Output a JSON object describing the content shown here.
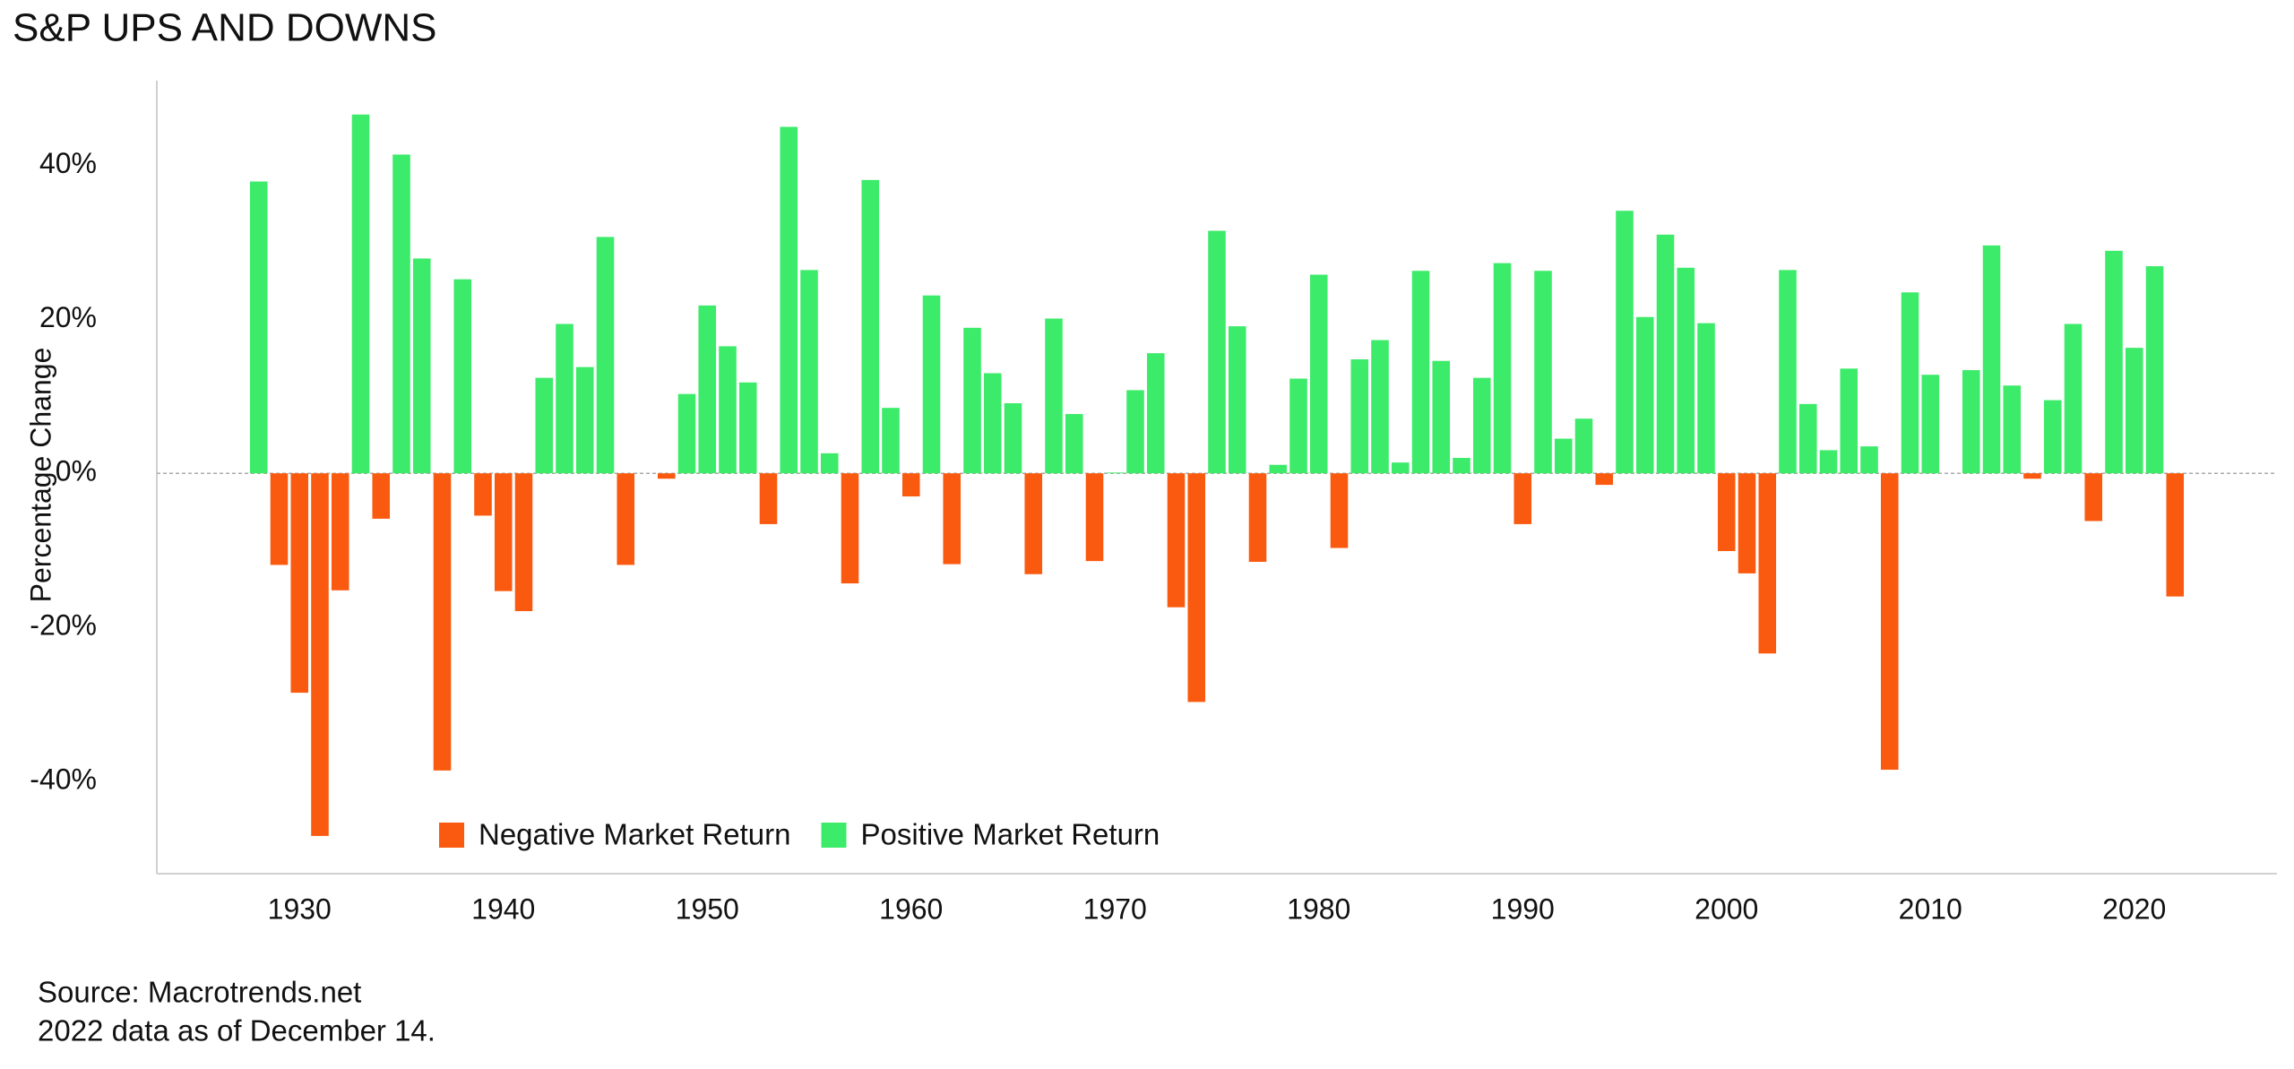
{
  "chart_data": {
    "type": "bar",
    "title": "S&P UPS AND DOWNS",
    "ylabel": "Percentage Change",
    "notes": [
      "Source: Macrotrends.net",
      "2022 data as of December 14."
    ],
    "x": [
      1928,
      1929,
      1930,
      1931,
      1932,
      1933,
      1934,
      1935,
      1936,
      1937,
      1938,
      1939,
      1940,
      1941,
      1942,
      1943,
      1944,
      1945,
      1946,
      1947,
      1948,
      1949,
      1950,
      1951,
      1952,
      1953,
      1954,
      1955,
      1956,
      1957,
      1958,
      1959,
      1960,
      1961,
      1962,
      1963,
      1964,
      1965,
      1966,
      1967,
      1968,
      1969,
      1970,
      1971,
      1972,
      1973,
      1974,
      1975,
      1976,
      1977,
      1978,
      1979,
      1980,
      1981,
      1982,
      1983,
      1984,
      1985,
      1986,
      1987,
      1988,
      1989,
      1990,
      1991,
      1992,
      1993,
      1994,
      1995,
      1996,
      1997,
      1998,
      1999,
      2000,
      2001,
      2002,
      2003,
      2004,
      2005,
      2006,
      2007,
      2008,
      2009,
      2010,
      2011,
      2012,
      2013,
      2014,
      2015,
      2016,
      2017,
      2018,
      2019,
      2020,
      2021,
      2022
    ],
    "series": [
      {
        "name": "Negative Market Return",
        "color": "#fa5a0f",
        "values": [
          null,
          -11.9,
          -28.5,
          -47.1,
          -15.2,
          null,
          -5.9,
          null,
          null,
          -38.6,
          null,
          -5.5,
          -15.3,
          -17.9,
          null,
          null,
          null,
          null,
          -11.9,
          null,
          -0.7,
          null,
          null,
          null,
          null,
          -6.6,
          null,
          null,
          null,
          -14.3,
          null,
          null,
          -3.0,
          null,
          -11.8,
          null,
          null,
          null,
          -13.1,
          null,
          null,
          -11.4,
          null,
          null,
          null,
          -17.4,
          -29.7,
          null,
          null,
          -11.5,
          null,
          null,
          null,
          -9.7,
          null,
          null,
          null,
          null,
          null,
          null,
          null,
          null,
          -6.6,
          null,
          null,
          null,
          -1.5,
          null,
          null,
          null,
          null,
          null,
          -10.1,
          -13.0,
          -23.4,
          null,
          null,
          null,
          null,
          null,
          -38.5,
          null,
          null,
          null,
          null,
          null,
          null,
          -0.7,
          null,
          null,
          -6.2,
          null,
          null,
          null,
          -16.0
        ]
      },
      {
        "name": "Positive Market Return",
        "color": "#3deb6a",
        "values": [
          37.9,
          null,
          null,
          null,
          null,
          46.6,
          null,
          41.4,
          27.9,
          null,
          25.2,
          null,
          null,
          null,
          12.4,
          19.4,
          13.8,
          30.7,
          null,
          0,
          null,
          10.3,
          21.8,
          16.5,
          11.8,
          null,
          45.0,
          26.4,
          2.6,
          null,
          38.1,
          8.5,
          null,
          23.1,
          null,
          18.9,
          13.0,
          9.1,
          null,
          20.1,
          7.7,
          null,
          0.1,
          10.8,
          15.6,
          null,
          null,
          31.5,
          19.1,
          null,
          1.1,
          12.3,
          25.8,
          null,
          14.8,
          17.3,
          1.4,
          26.3,
          14.6,
          2.0,
          12.4,
          27.3,
          null,
          26.3,
          4.5,
          7.1,
          null,
          34.1,
          20.3,
          31.0,
          26.7,
          19.5,
          null,
          null,
          null,
          26.4,
          9.0,
          3.0,
          13.6,
          3.5,
          null,
          23.5,
          12.8,
          0,
          13.4,
          29.6,
          11.4,
          null,
          9.5,
          19.4,
          null,
          28.9,
          16.3,
          26.9,
          null
        ]
      }
    ],
    "xlim": [
      1923,
      2027
    ],
    "xticks": [
      1930,
      1940,
      1950,
      1960,
      1970,
      1980,
      1990,
      2000,
      2010,
      2020
    ],
    "ylim": [
      -52,
      51
    ],
    "yticks": [
      {
        "value": -40,
        "label": "-40%"
      },
      {
        "value": -20,
        "label": "-20%"
      },
      {
        "value": 0,
        "label": "0%"
      },
      {
        "value": 20,
        "label": "20%"
      },
      {
        "value": 40,
        "label": "40%"
      }
    ],
    "legend": "lower left"
  }
}
